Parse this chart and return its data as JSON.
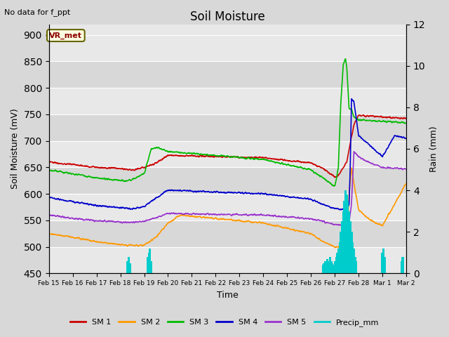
{
  "title": "Soil Moisture",
  "top_left_text": "No data for f_ppt",
  "station_label": "VR_met",
  "ylabel_left": "Soil Moisture (mV)",
  "ylabel_right": "Rain (mm)",
  "xlabel": "Time",
  "ylim_left": [
    450,
    920
  ],
  "ylim_right": [
    0,
    12
  ],
  "yticks_left": [
    450,
    500,
    550,
    600,
    650,
    700,
    750,
    800,
    850,
    900
  ],
  "yticks_right": [
    0,
    2,
    4,
    6,
    8,
    10,
    12
  ],
  "fig_width": 6.4,
  "fig_height": 4.8,
  "dpi": 100,
  "background_color": "#d8d8d8",
  "plot_bg_light": "#e8e8e8",
  "plot_bg_dark": "#d8d8d8",
  "colors": {
    "SM1": "#cc0000",
    "SM2": "#ff9900",
    "SM3": "#00bb00",
    "SM4": "#0000cc",
    "SM5": "#9933cc",
    "Precip": "#00cccc"
  },
  "legend_labels": [
    "SM 1",
    "SM 2",
    "SM 3",
    "SM 4",
    "SM 5",
    "Precip_mm"
  ],
  "xtick_labels": [
    "Feb 15",
    "Feb 16",
    "Feb 17",
    "Feb 18",
    "Feb 19",
    "Feb 20",
    "Feb 21",
    "Feb 22",
    "Feb 23",
    "Feb 24",
    "Feb 25",
    "Feb 26",
    "Feb 27",
    "Feb 28",
    "Mar 1",
    "Mar 2"
  ]
}
